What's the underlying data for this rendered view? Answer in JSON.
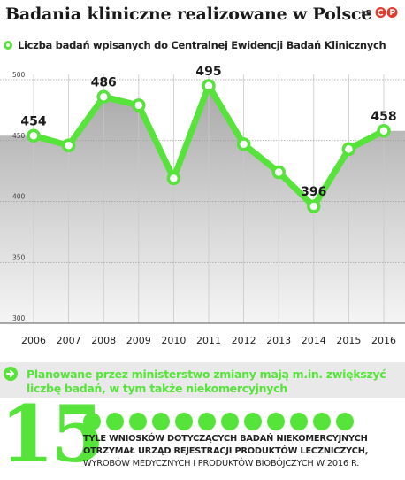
{
  "header": {
    "title": "Badania kliniczne realizowane w Polsce",
    "author": "ŁR",
    "logo_icon": "publisher-logo-icon"
  },
  "legend": {
    "label": "Liczba badań wpisanych do Centralnej Ewidencji Badań Klinicznych"
  },
  "chart_data": {
    "type": "line",
    "title": "Badania kliniczne realizowane w Polsce",
    "x": [
      "2006",
      "2007",
      "2008",
      "2009",
      "2010",
      "2011",
      "2012",
      "2013",
      "2014",
      "2015",
      "2016"
    ],
    "series": [
      {
        "name": "Liczba badań wpisanych do Centralnej Ewidencji Badań Klinicznych",
        "values": [
          454,
          446,
          486,
          479,
          419,
          495,
          447,
          424,
          396,
          443,
          458
        ]
      }
    ],
    "labeled_points": {
      "2006": "454",
      "2008": "486",
      "2011": "495",
      "2014": "396",
      "2016": "458"
    },
    "yticks": [
      "500",
      "450",
      "400",
      "350",
      "300"
    ],
    "ylim": [
      300,
      500
    ],
    "grid": "vertical and horizontal",
    "color": "#56e33a"
  },
  "banner": {
    "icon": "arrow-right-icon",
    "text": "Planowane przez ministerstwo zmiany mają m.in. zwiększyć liczbę badań, w tym także niekomercyjnych"
  },
  "fact": {
    "number": "15",
    "dots": 15,
    "text_bold": "Tyle wniosków dotyczących badań niekomercyjnych otrzymał Urząd Rejestracji Produktów Leczniczych,",
    "text_regular": "Wyrobów Medycznych i Produktów Biobójczych w 2016 r."
  }
}
